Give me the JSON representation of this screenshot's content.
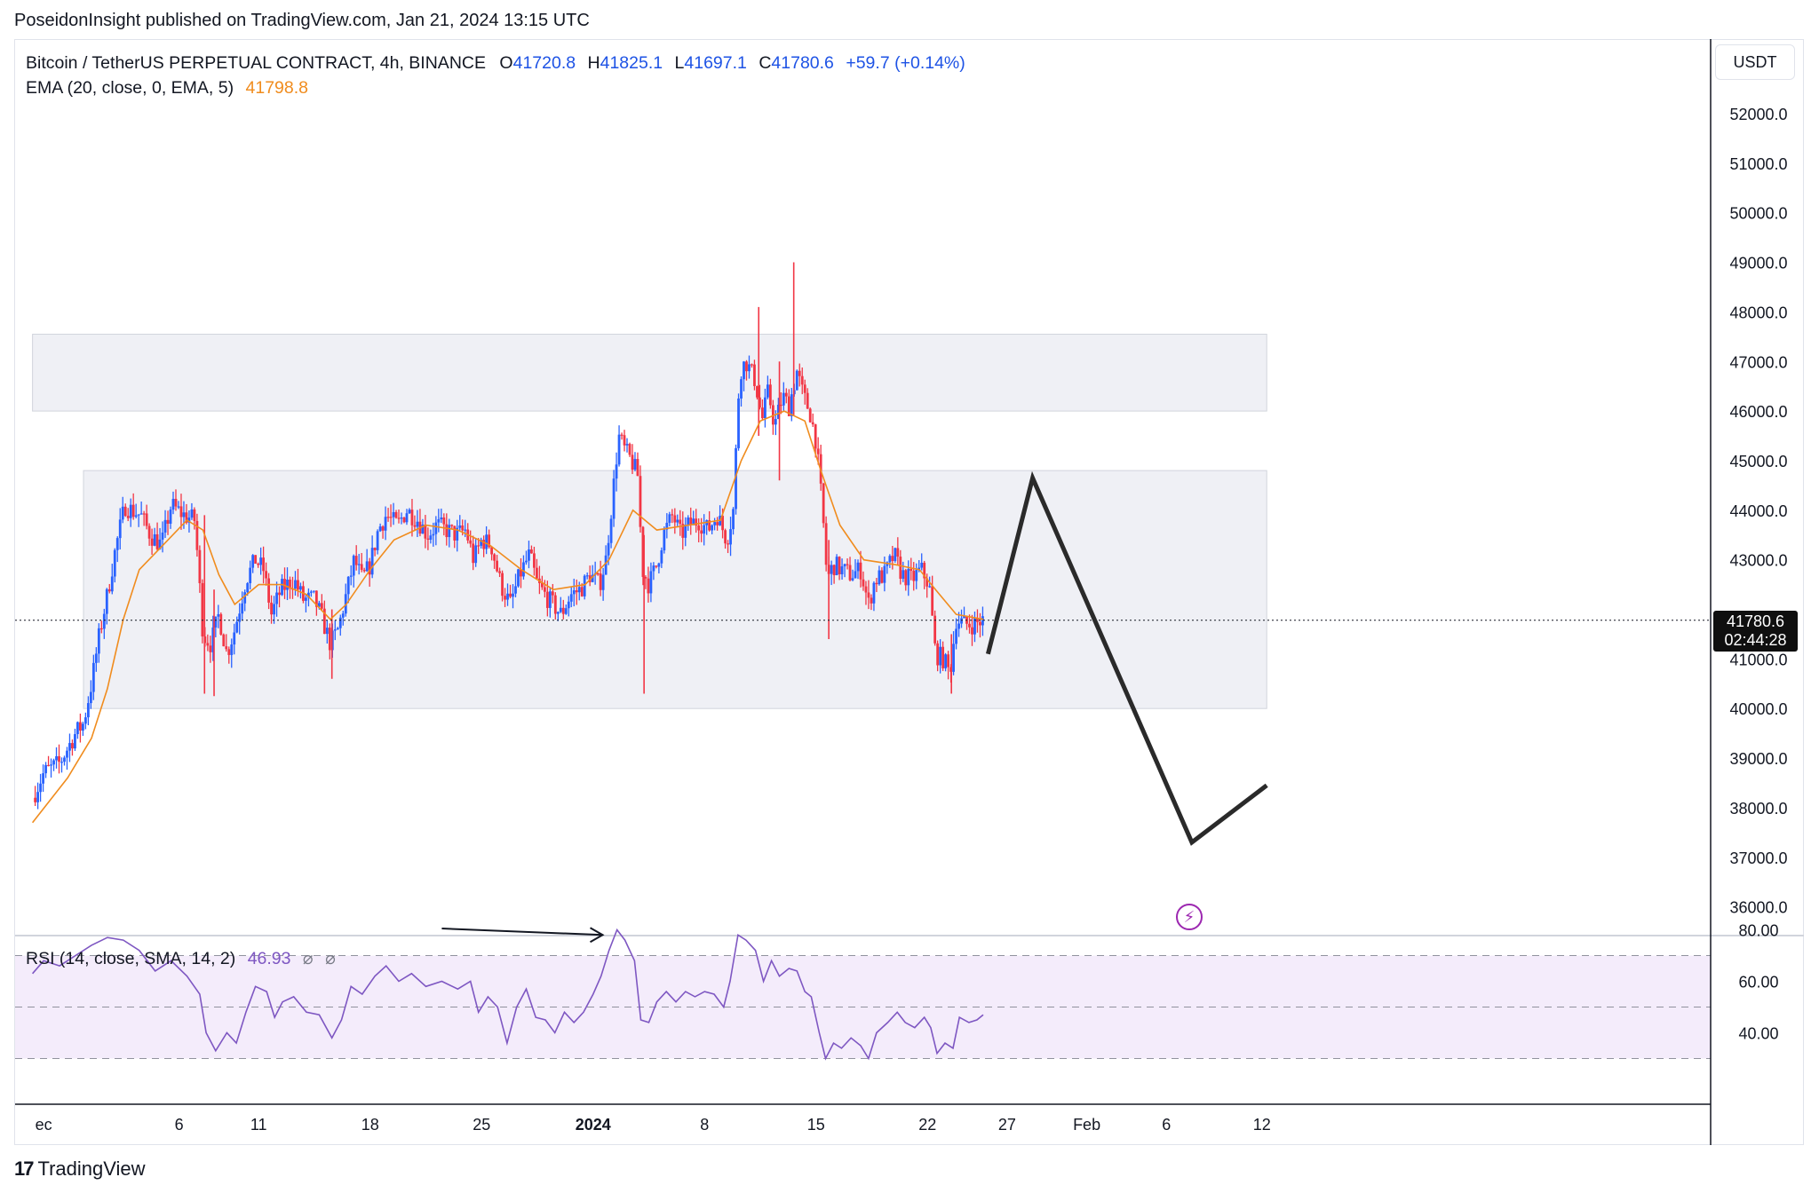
{
  "header": {
    "published": "PoseidonInsight published on TradingView.com, Jan 21, 2024 13:15 UTC"
  },
  "legend": {
    "symbol": "Bitcoin / TetherUS PERPETUAL CONTRACT, 4h, BINANCE",
    "o_label": "O",
    "o": "41720.8",
    "h_label": "H",
    "h": "41825.1",
    "l_label": "L",
    "l": "41697.1",
    "c_label": "C",
    "c": "41780.6",
    "change": "+59.7 (+0.14%)",
    "ema_label": "EMA (20, close, 0, EMA, 5)",
    "ema_value": "41798.8"
  },
  "rsi_legend": {
    "label": "RSI (14, close, SMA, 14, 2)",
    "value": "46.93",
    "na1": "⌀",
    "na2": "⌀"
  },
  "currency": "USDT",
  "price_tag": {
    "price": "41780.6",
    "countdown": "02:44:28"
  },
  "brand": {
    "logo_mark": "17",
    "name": "TradingView"
  },
  "icons": {
    "flash": "lightning-icon"
  },
  "colors": {
    "up": "#2962ff",
    "down": "#f23645",
    "ema": "#f08c1e",
    "rsi": "#7e57c2",
    "zone": "#eff0f5",
    "rsi_band": "#f4ecfb"
  },
  "chart_data": {
    "type": "candlestick",
    "x_axis_labels": [
      {
        "label": "ec",
        "d": -2.5
      },
      {
        "label": "6",
        "d": 6
      },
      {
        "label": "11",
        "d": 11
      },
      {
        "label": "18",
        "d": 18
      },
      {
        "label": "25",
        "d": 25
      },
      {
        "label": "2024",
        "d": 32
      },
      {
        "label": "8",
        "d": 39
      },
      {
        "label": "15",
        "d": 46
      },
      {
        "label": "22",
        "d": 53
      },
      {
        "label": "27",
        "d": 58
      },
      {
        "label": "Feb",
        "d": 63
      },
      {
        "label": "6",
        "d": 68
      },
      {
        "label": "12",
        "d": 74
      }
    ],
    "x_axis_bold": [
      "2024"
    ],
    "y_axis": {
      "ticks": [
        "36000.0",
        "37000.0",
        "38000.0",
        "39000.0",
        "40000.0",
        "41000.0",
        "42000.0",
        "43000.0",
        "44000.0",
        "45000.0",
        "46000.0",
        "47000.0",
        "48000.0",
        "49000.0",
        "50000.0",
        "51000.0",
        "52000.0"
      ]
    },
    "rsi_axis": {
      "ticks": [
        "40.00",
        "60.00",
        "80.00"
      ],
      "band": [
        30,
        70
      ],
      "mid": 50
    },
    "zones": [
      {
        "from_d": -3.2,
        "to_d": 74.3,
        "low": 46000,
        "high": 47550
      },
      {
        "from_d": 0.0,
        "to_d": 74.3,
        "low": 40000,
        "high": 44800
      }
    ],
    "price_path": [
      {
        "d": -3.2,
        "p": 38200
      },
      {
        "d": -2.5,
        "p": 38700
      },
      {
        "d": -1.5,
        "p": 38900
      },
      {
        "d": -0.5,
        "p": 39500
      },
      {
        "d": 0,
        "p": 39700
      },
      {
        "d": 0.5,
        "p": 40500
      },
      {
        "d": 1,
        "p": 41500
      },
      {
        "d": 1.5,
        "p": 42300
      },
      {
        "d": 2,
        "p": 43200
      },
      {
        "d": 2.6,
        "p": 44100
      },
      {
        "d": 3,
        "p": 44000
      },
      {
        "d": 3.6,
        "p": 43900
      },
      {
        "d": 4.2,
        "p": 43500
      },
      {
        "d": 4.9,
        "p": 43300
      },
      {
        "d": 5.5,
        "p": 44100
      },
      {
        "d": 6.3,
        "p": 43900
      },
      {
        "d": 7,
        "p": 43800
      },
      {
        "d": 7.5,
        "p": 41500
      },
      {
        "d": 8,
        "p": 41300
      },
      {
        "d": 8.5,
        "p": 41900
      },
      {
        "d": 9,
        "p": 41100
      },
      {
        "d": 9.5,
        "p": 41600
      },
      {
        "d": 10.2,
        "p": 42600
      },
      {
        "d": 10.8,
        "p": 43000
      },
      {
        "d": 11.3,
        "p": 42800
      },
      {
        "d": 11.8,
        "p": 41900
      },
      {
        "d": 12.4,
        "p": 42400
      },
      {
        "d": 13.2,
        "p": 42600
      },
      {
        "d": 13.8,
        "p": 42200
      },
      {
        "d": 14.5,
        "p": 42200
      },
      {
        "d": 15,
        "p": 41800
      },
      {
        "d": 15.5,
        "p": 41300
      },
      {
        "d": 16,
        "p": 41600
      },
      {
        "d": 16.5,
        "p": 42300
      },
      {
        "d": 17,
        "p": 43000
      },
      {
        "d": 17.5,
        "p": 42600
      },
      {
        "d": 18,
        "p": 42900
      },
      {
        "d": 18.5,
        "p": 43600
      },
      {
        "d": 19,
        "p": 43900
      },
      {
        "d": 19.7,
        "p": 43700
      },
      {
        "d": 20.3,
        "p": 44000
      },
      {
        "d": 21,
        "p": 43800
      },
      {
        "d": 21.6,
        "p": 43500
      },
      {
        "d": 22.2,
        "p": 43700
      },
      {
        "d": 22.8,
        "p": 43600
      },
      {
        "d": 23.4,
        "p": 43500
      },
      {
        "d": 24,
        "p": 43600
      },
      {
        "d": 24.5,
        "p": 43000
      },
      {
        "d": 25,
        "p": 43400
      },
      {
        "d": 25.6,
        "p": 43300
      },
      {
        "d": 26.2,
        "p": 42500
      },
      {
        "d": 26.8,
        "p": 42100
      },
      {
        "d": 27.4,
        "p": 42700
      },
      {
        "d": 28,
        "p": 43100
      },
      {
        "d": 28.5,
        "p": 42500
      },
      {
        "d": 29.2,
        "p": 42200
      },
      {
        "d": 30,
        "p": 41900
      },
      {
        "d": 30.6,
        "p": 42300
      },
      {
        "d": 31.2,
        "p": 42400
      },
      {
        "d": 31.8,
        "p": 42700
      },
      {
        "d": 32.4,
        "p": 42500
      },
      {
        "d": 32.8,
        "p": 43000
      },
      {
        "d": 33.2,
        "p": 44200
      },
      {
        "d": 33.6,
        "p": 45500
      },
      {
        "d": 34,
        "p": 45200
      },
      {
        "d": 34.4,
        "p": 45000
      },
      {
        "d": 34.8,
        "p": 44700
      },
      {
        "d": 35.1,
        "p": 42800
      },
      {
        "d": 35.5,
        "p": 42500
      },
      {
        "d": 36,
        "p": 42900
      },
      {
        "d": 36.4,
        "p": 43500
      },
      {
        "d": 37,
        "p": 43900
      },
      {
        "d": 37.5,
        "p": 43500
      },
      {
        "d": 38,
        "p": 43700
      },
      {
        "d": 38.6,
        "p": 43800
      },
      {
        "d": 39.2,
        "p": 43600
      },
      {
        "d": 39.8,
        "p": 43900
      },
      {
        "d": 40.4,
        "p": 43400
      },
      {
        "d": 40.8,
        "p": 44000
      },
      {
        "d": 41.2,
        "p": 46800
      },
      {
        "d": 41.6,
        "p": 47000
      },
      {
        "d": 42.2,
        "p": 46600
      },
      {
        "d": 42.6,
        "p": 45800
      },
      {
        "d": 43,
        "p": 46400
      },
      {
        "d": 43.4,
        "p": 45700
      },
      {
        "d": 43.9,
        "p": 46300
      },
      {
        "d": 44.3,
        "p": 46100
      },
      {
        "d": 44.8,
        "p": 46800
      },
      {
        "d": 45.2,
        "p": 46300
      },
      {
        "d": 45.6,
        "p": 46000
      },
      {
        "d": 46,
        "p": 45400
      },
      {
        "d": 46.4,
        "p": 44000
      },
      {
        "d": 46.7,
        "p": 42600
      },
      {
        "d": 47.1,
        "p": 42900
      },
      {
        "d": 47.6,
        "p": 42800
      },
      {
        "d": 48.2,
        "p": 42700
      },
      {
        "d": 48.8,
        "p": 42800
      },
      {
        "d": 49.3,
        "p": 42100
      },
      {
        "d": 49.7,
        "p": 42600
      },
      {
        "d": 50.3,
        "p": 42700
      },
      {
        "d": 50.9,
        "p": 43100
      },
      {
        "d": 51.4,
        "p": 42700
      },
      {
        "d": 52,
        "p": 42600
      },
      {
        "d": 52.6,
        "p": 42800
      },
      {
        "d": 53.1,
        "p": 42500
      },
      {
        "d": 53.5,
        "p": 41100
      },
      {
        "d": 54,
        "p": 41000
      },
      {
        "d": 54.4,
        "p": 40700
      },
      {
        "d": 54.8,
        "p": 41800
      },
      {
        "d": 55.3,
        "p": 41700
      },
      {
        "d": 55.9,
        "p": 41700
      },
      {
        "d": 56.5,
        "p": 41780
      }
    ],
    "wick_spikes": [
      {
        "d": 7.6,
        "low": 40300,
        "high": 43900
      },
      {
        "d": 8.2,
        "low": 40250,
        "high": 42400
      },
      {
        "d": 15.6,
        "low": 40600,
        "high": 42000
      },
      {
        "d": 35.2,
        "low": 40300,
        "high": 43500
      },
      {
        "d": 42.4,
        "low": 45500,
        "high": 48100
      },
      {
        "d": 43.7,
        "low": 44600,
        "high": 47000
      },
      {
        "d": 44.6,
        "low": 45900,
        "high": 49000
      },
      {
        "d": 46.8,
        "low": 41400,
        "high": 43400
      },
      {
        "d": 54.5,
        "low": 40300,
        "high": 41500
      }
    ],
    "ema_path": [
      {
        "d": -3.2,
        "p": 37700
      },
      {
        "d": -1,
        "p": 38600
      },
      {
        "d": 0.5,
        "p": 39400
      },
      {
        "d": 1.5,
        "p": 40400
      },
      {
        "d": 2.5,
        "p": 41800
      },
      {
        "d": 3.5,
        "p": 42800
      },
      {
        "d": 5,
        "p": 43300
      },
      {
        "d": 6.5,
        "p": 43800
      },
      {
        "d": 7.5,
        "p": 43600
      },
      {
        "d": 8.5,
        "p": 42700
      },
      {
        "d": 9.5,
        "p": 42100
      },
      {
        "d": 11,
        "p": 42500
      },
      {
        "d": 12.5,
        "p": 42500
      },
      {
        "d": 14,
        "p": 42300
      },
      {
        "d": 15.5,
        "p": 41800
      },
      {
        "d": 16.5,
        "p": 42100
      },
      {
        "d": 18,
        "p": 42800
      },
      {
        "d": 19.5,
        "p": 43400
      },
      {
        "d": 21.5,
        "p": 43700
      },
      {
        "d": 23.5,
        "p": 43600
      },
      {
        "d": 25.5,
        "p": 43300
      },
      {
        "d": 27.5,
        "p": 42800
      },
      {
        "d": 29.5,
        "p": 42400
      },
      {
        "d": 31.5,
        "p": 42500
      },
      {
        "d": 33,
        "p": 43000
      },
      {
        "d": 34.5,
        "p": 44000
      },
      {
        "d": 36,
        "p": 43600
      },
      {
        "d": 38,
        "p": 43700
      },
      {
        "d": 40,
        "p": 43800
      },
      {
        "d": 41.3,
        "p": 45000
      },
      {
        "d": 42.5,
        "p": 45800
      },
      {
        "d": 44,
        "p": 46000
      },
      {
        "d": 45.3,
        "p": 45800
      },
      {
        "d": 46.3,
        "p": 44800
      },
      {
        "d": 47.5,
        "p": 43700
      },
      {
        "d": 49,
        "p": 43000
      },
      {
        "d": 51,
        "p": 42900
      },
      {
        "d": 52.5,
        "p": 42800
      },
      {
        "d": 53.5,
        "p": 42400
      },
      {
        "d": 54.8,
        "p": 41900
      },
      {
        "d": 56.5,
        "p": 41800
      }
    ],
    "rsi_path": [
      {
        "d": -3.2,
        "r": 63
      },
      {
        "d": -2.5,
        "r": 68
      },
      {
        "d": -1.5,
        "r": 66
      },
      {
        "d": -0.5,
        "r": 70
      },
      {
        "d": 0.5,
        "r": 74
      },
      {
        "d": 1.5,
        "r": 77
      },
      {
        "d": 2.5,
        "r": 76
      },
      {
        "d": 3.5,
        "r": 72
      },
      {
        "d": 4.5,
        "r": 64
      },
      {
        "d": 5.5,
        "r": 68
      },
      {
        "d": 6.5,
        "r": 62
      },
      {
        "d": 7.3,
        "r": 55
      },
      {
        "d": 7.7,
        "r": 40
      },
      {
        "d": 8.3,
        "r": 33
      },
      {
        "d": 9,
        "r": 40
      },
      {
        "d": 9.6,
        "r": 36
      },
      {
        "d": 10.2,
        "r": 48
      },
      {
        "d": 10.8,
        "r": 58
      },
      {
        "d": 11.5,
        "r": 56
      },
      {
        "d": 12,
        "r": 46
      },
      {
        "d": 12.5,
        "r": 52
      },
      {
        "d": 13.2,
        "r": 54
      },
      {
        "d": 14,
        "r": 48
      },
      {
        "d": 14.8,
        "r": 47
      },
      {
        "d": 15.6,
        "r": 38
      },
      {
        "d": 16.2,
        "r": 45
      },
      {
        "d": 16.8,
        "r": 58
      },
      {
        "d": 17.5,
        "r": 55
      },
      {
        "d": 18.3,
        "r": 62
      },
      {
        "d": 19,
        "r": 66
      },
      {
        "d": 19.8,
        "r": 60
      },
      {
        "d": 20.6,
        "r": 63
      },
      {
        "d": 21.5,
        "r": 58
      },
      {
        "d": 22.5,
        "r": 60
      },
      {
        "d": 23.5,
        "r": 57
      },
      {
        "d": 24.3,
        "r": 60
      },
      {
        "d": 24.8,
        "r": 48
      },
      {
        "d": 25.4,
        "r": 54
      },
      {
        "d": 26,
        "r": 50
      },
      {
        "d": 26.6,
        "r": 36
      },
      {
        "d": 27.2,
        "r": 50
      },
      {
        "d": 27.8,
        "r": 57
      },
      {
        "d": 28.4,
        "r": 46
      },
      {
        "d": 29,
        "r": 45
      },
      {
        "d": 29.6,
        "r": 40
      },
      {
        "d": 30.2,
        "r": 48
      },
      {
        "d": 30.8,
        "r": 44
      },
      {
        "d": 31.4,
        "r": 48
      },
      {
        "d": 32,
        "r": 55
      },
      {
        "d": 32.5,
        "r": 62
      },
      {
        "d": 33,
        "r": 72
      },
      {
        "d": 33.5,
        "r": 80
      },
      {
        "d": 34,
        "r": 76
      },
      {
        "d": 34.6,
        "r": 68
      },
      {
        "d": 35,
        "r": 45
      },
      {
        "d": 35.5,
        "r": 44
      },
      {
        "d": 36,
        "r": 52
      },
      {
        "d": 36.6,
        "r": 56
      },
      {
        "d": 37.2,
        "r": 52
      },
      {
        "d": 37.8,
        "r": 56
      },
      {
        "d": 38.4,
        "r": 54
      },
      {
        "d": 39,
        "r": 56
      },
      {
        "d": 39.6,
        "r": 55
      },
      {
        "d": 40.2,
        "r": 50
      },
      {
        "d": 40.6,
        "r": 60
      },
      {
        "d": 41.1,
        "r": 78
      },
      {
        "d": 41.6,
        "r": 76
      },
      {
        "d": 42.2,
        "r": 72
      },
      {
        "d": 42.7,
        "r": 60
      },
      {
        "d": 43.2,
        "r": 68
      },
      {
        "d": 43.7,
        "r": 62
      },
      {
        "d": 44.3,
        "r": 65
      },
      {
        "d": 44.8,
        "r": 64
      },
      {
        "d": 45.3,
        "r": 56
      },
      {
        "d": 45.7,
        "r": 54
      },
      {
        "d": 46.2,
        "r": 40
      },
      {
        "d": 46.6,
        "r": 30
      },
      {
        "d": 47.1,
        "r": 36
      },
      {
        "d": 47.6,
        "r": 34
      },
      {
        "d": 48.2,
        "r": 38
      },
      {
        "d": 48.8,
        "r": 35
      },
      {
        "d": 49.3,
        "r": 30
      },
      {
        "d": 49.8,
        "r": 40
      },
      {
        "d": 50.5,
        "r": 44
      },
      {
        "d": 51.1,
        "r": 48
      },
      {
        "d": 51.6,
        "r": 44
      },
      {
        "d": 52.2,
        "r": 42
      },
      {
        "d": 52.8,
        "r": 46
      },
      {
        "d": 53.2,
        "r": 42
      },
      {
        "d": 53.6,
        "r": 32
      },
      {
        "d": 54.1,
        "r": 36
      },
      {
        "d": 54.6,
        "r": 34
      },
      {
        "d": 55,
        "r": 46
      },
      {
        "d": 55.6,
        "r": 44
      },
      {
        "d": 56.1,
        "r": 45
      },
      {
        "d": 56.5,
        "r": 47
      }
    ],
    "projection": [
      {
        "d": 56.8,
        "p": 41100
      },
      {
        "d": 59.6,
        "p": 44650
      },
      {
        "d": 69.6,
        "p": 37300
      },
      {
        "d": 74.3,
        "p": 38450
      }
    ],
    "rsi_divergence_arrow": {
      "from": {
        "d": 22.5,
        "r": 80.5
      },
      "to": {
        "d": 32.6,
        "r": 78
      }
    },
    "last_price": 41780.6
  }
}
